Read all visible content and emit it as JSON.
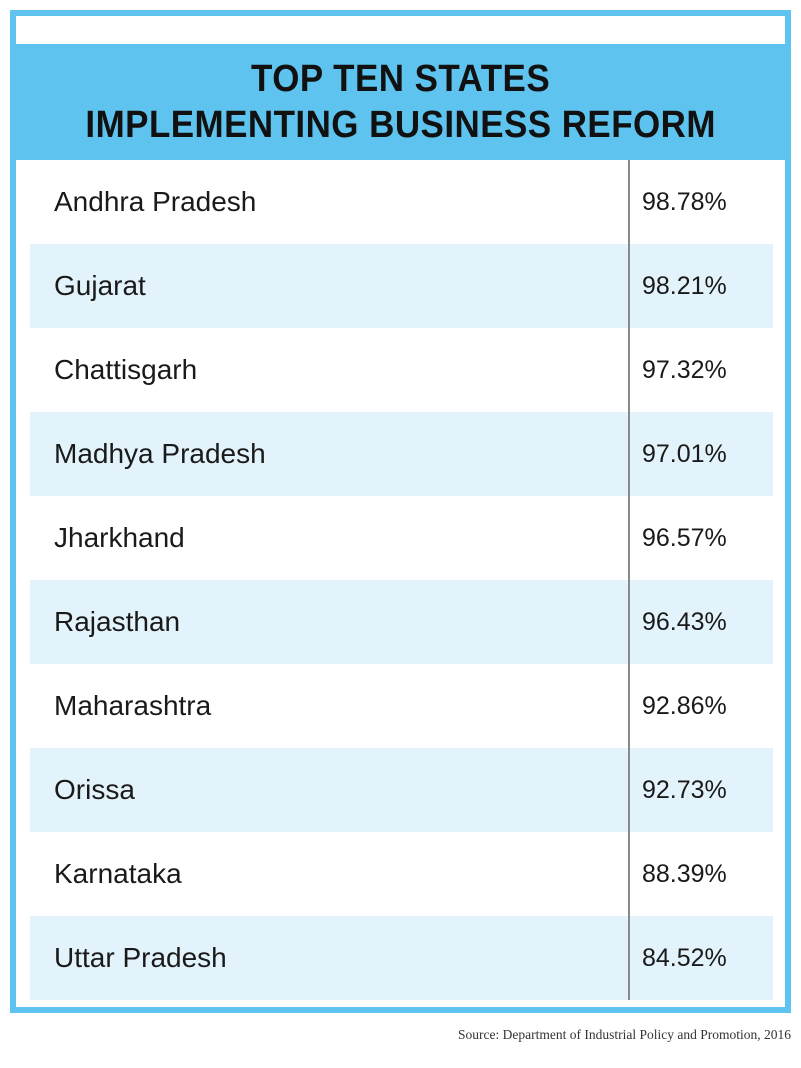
{
  "chart_data": {
    "type": "table",
    "title_lines": [
      "TOP TEN STATES",
      "IMPLEMENTING BUSINESS REFORM"
    ],
    "rows": [
      {
        "state": "Andhra Pradesh",
        "value": "98.78%"
      },
      {
        "state": "Gujarat",
        "value": "98.21%"
      },
      {
        "state": "Chattisgarh",
        "value": "97.32%"
      },
      {
        "state": "Madhya Pradesh",
        "value": "97.01%"
      },
      {
        "state": "Jharkhand",
        "value": "96.57%"
      },
      {
        "state": "Rajasthan",
        "value": "96.43%"
      },
      {
        "state": "Maharashtra",
        "value": "92.86%"
      },
      {
        "state": "Orissa",
        "value": "92.73%"
      },
      {
        "state": "Karnataka",
        "value": "88.39%"
      },
      {
        "state": "Uttar Pradesh",
        "value": "84.52%"
      }
    ],
    "source": "Source: Department of Industrial Policy and Promotion, 2016"
  },
  "colors": {
    "frame": "#5ec3ee",
    "title_bar": "#5ec3ee",
    "alt_row": "#e3f3fc",
    "divider": "#8a8a8a"
  }
}
